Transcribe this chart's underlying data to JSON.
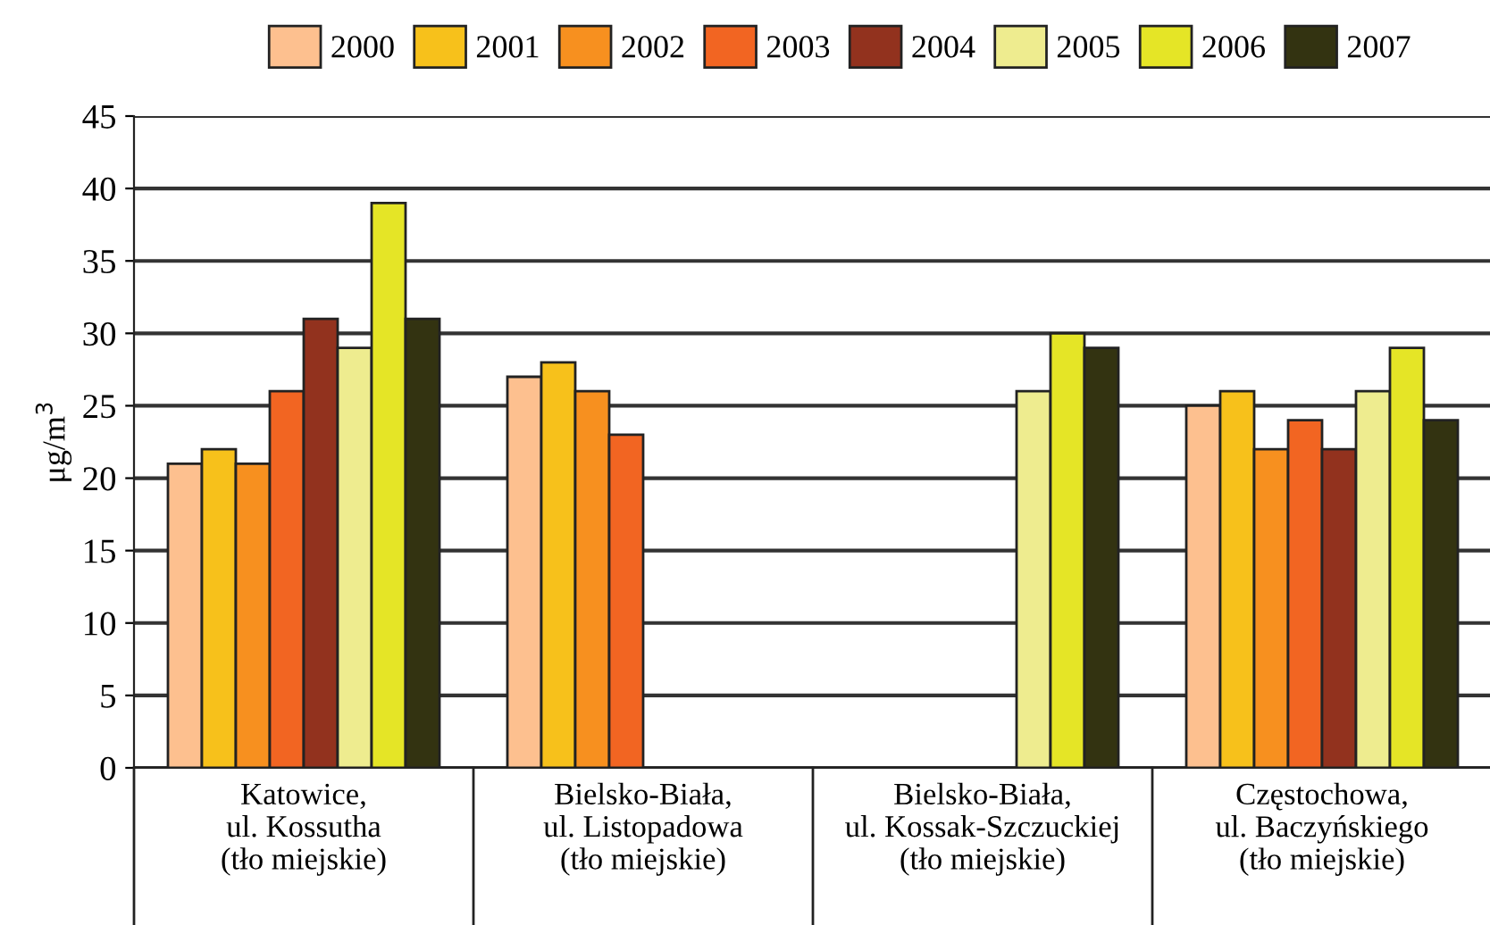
{
  "chart_data": {
    "type": "bar",
    "ylabel": "μg/m$^{3}$",
    "categories": [
      "Katowice,\nul. Kossutha\n(tło miejskie)",
      "Bielsko-Biała,\nul. Listopadowa\n(tło miejskie)",
      "Bielsko-Biała,\nul. Kossak-Szczuckiej\n(tło miejskie)",
      "Częstochowa,\nul. Baczyńskiego\n(tło miejskie)"
    ],
    "series": [
      {
        "name": "2000",
        "color": "#fdc08f",
        "values": [
          21,
          27,
          null,
          25
        ]
      },
      {
        "name": "2001",
        "color": "#f7c11b",
        "values": [
          22,
          28,
          null,
          26
        ]
      },
      {
        "name": "2002",
        "color": "#f7901f",
        "values": [
          21,
          26,
          null,
          22
        ]
      },
      {
        "name": "2003",
        "color": "#f26522",
        "values": [
          26,
          23,
          null,
          24
        ]
      },
      {
        "name": "2004",
        "color": "#92321e",
        "values": [
          31,
          null,
          null,
          22
        ]
      },
      {
        "name": "2005",
        "color": "#eeec8f",
        "values": [
          29,
          null,
          26,
          26
        ]
      },
      {
        "name": "2006",
        "color": "#e5e526",
        "values": [
          39,
          null,
          30,
          29
        ]
      },
      {
        "name": "2007",
        "color": "#333311",
        "values": [
          31,
          null,
          29,
          24
        ]
      }
    ],
    "ylim": [
      0,
      45
    ],
    "yticks": [
      0,
      5,
      10,
      15,
      20,
      25,
      30,
      35,
      40,
      45
    ],
    "grid": "y",
    "legend": "top"
  }
}
